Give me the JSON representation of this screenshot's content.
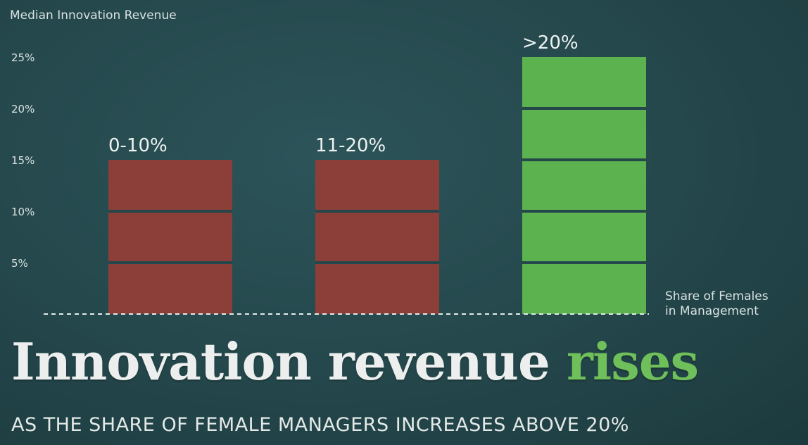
{
  "chart_data": {
    "type": "bar",
    "ylabel": "Median Innovation Revenue",
    "xlabel_lines": [
      "Share of Females",
      "in Management"
    ],
    "yticks": [
      "5%",
      "10%",
      "15%",
      "20%",
      "25%"
    ],
    "ytick_values": [
      5,
      10,
      15,
      20,
      25
    ],
    "ylim": [
      0,
      25
    ],
    "segment_step": 5,
    "categories": [
      "0-10%",
      "11-20%",
      ">20%"
    ],
    "values": [
      15,
      15,
      25
    ],
    "colors": [
      "#8b3f38",
      "#8b3f38",
      "#5cb24f"
    ],
    "grid": false
  },
  "headline": {
    "main": "Innovation revenue",
    "accent": "rises"
  },
  "subtitle": "AS THE SHARE OF FEMALE MANAGERS INCREASES ABOVE 20%",
  "colors": {
    "background": "#24474b",
    "separator": "#24474b",
    "accent_text": "#6fbf5b"
  }
}
